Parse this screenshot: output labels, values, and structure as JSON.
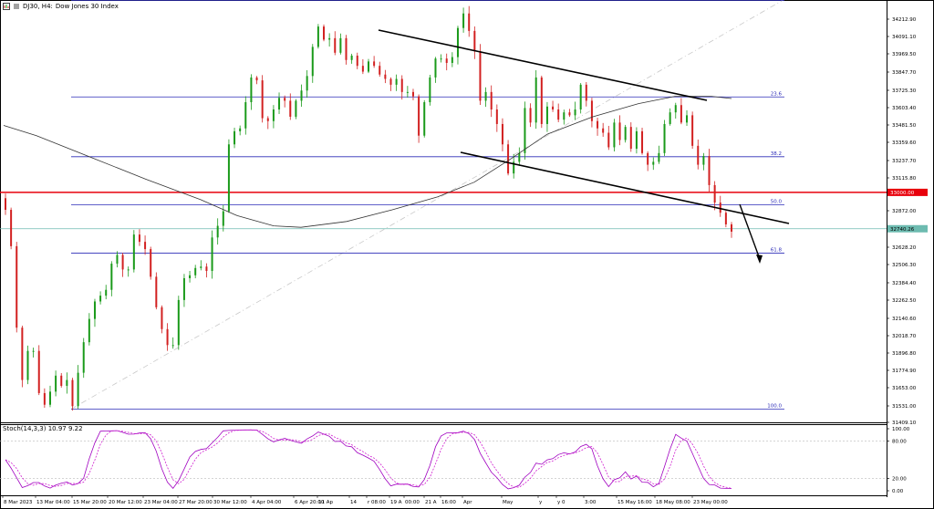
{
  "header": {
    "symbol": "DJ30, H4:",
    "description": "Dow Jones 30 Index"
  },
  "price_axis": {
    "ticks": [
      "34212.90",
      "34091.10",
      "33969.50",
      "33847.70",
      "33725.30",
      "33603.40",
      "33481.50",
      "33359.60",
      "33237.70",
      "33115.80",
      "32872.00",
      "32750.10",
      "32628.20",
      "32506.30",
      "32384.40",
      "32262.50",
      "32140.60",
      "32018.70",
      "31896.80",
      "31774.90",
      "31653.00",
      "31531.00",
      "31409.10"
    ],
    "current_price": "32740.26",
    "level_33000": "33000.00"
  },
  "fibonacci": [
    {
      "label": "0.0",
      "price": 34310
    },
    {
      "label": "23.6",
      "price": 33646
    },
    {
      "label": "38.2",
      "price": 33235
    },
    {
      "label": "50.0",
      "price": 32904
    },
    {
      "label": "61.8",
      "price": 32572
    },
    {
      "label": "100.0",
      "price": 31500
    }
  ],
  "time_axis": [
    "8 Mar 2023",
    "13 Mar 04:00",
    "15 Mar 20:00",
    "20 Mar 12:00",
    "23 Mar 04:00",
    "27 Mar 20:00",
    "30 Mar 12:00",
    "4 Apr 04:00",
    "6 Apr 20:00",
    "11 Ap",
    "14",
    "r 08:00",
    "19 A",
    "00:00",
    "21 A",
    "16:00",
    "Apr",
    "May",
    "y",
    "y 0",
    "3:00",
    "15 May 16:00",
    "18 May 08:00",
    "23 May 00:00"
  ],
  "indicator": {
    "label": "Stoch(14,3,3) 10.97 9.22",
    "levels": [
      "100.00",
      "80.00",
      "20.00",
      "0.00"
    ]
  },
  "colors": {
    "bull": "#1a9a1a",
    "bear": "#d22020",
    "fib": "#2b2bb8",
    "support": "#e8000c",
    "current": "#6dbbb0",
    "stoch_main": "#a000c0",
    "stoch_signal": "#d020d0"
  },
  "chart_data": {
    "type": "candlestick",
    "price_ylim": [
      31409,
      34300
    ],
    "close_series": [
      32870,
      32620,
      32060,
      31700,
      31900,
      31900,
      31610,
      31530,
      31620,
      31730,
      31660,
      31700,
      31520,
      31750,
      31960,
      32120,
      32240,
      32280,
      32320,
      32500,
      32560,
      32460,
      32460,
      32700,
      32650,
      32600,
      32410,
      32200,
      32050,
      31940,
      31940,
      32250,
      32400,
      32420,
      32470,
      32480,
      32450,
      32680,
      32760,
      32860,
      33320,
      33410,
      33430,
      33610,
      33780,
      33760,
      33500,
      33480,
      33560,
      33640,
      33620,
      33510,
      33620,
      33690,
      33790,
      33990,
      34130,
      34040,
      34050,
      33950,
      34050,
      33900,
      33930,
      33860,
      33820,
      33890,
      33860,
      33800,
      33770,
      33730,
      33770,
      33680,
      33680,
      33650,
      33380,
      33610,
      33780,
      33910,
      33910,
      33880,
      33920,
      34120,
      34220,
      34100,
      33960,
      33620,
      33680,
      33560,
      33460,
      33320,
      33120,
      33200,
      33260,
      33570,
      33470,
      33780,
      33460,
      33580,
      33560,
      33490,
      33540,
      33520,
      33560,
      33730,
      33620,
      33480,
      33430,
      33400,
      33300,
      33470,
      33350,
      33440,
      33290,
      33410,
      33260,
      33180,
      33200,
      33260,
      33460,
      33540,
      33590,
      33470,
      33520,
      33310,
      33180,
      33240,
      33040,
      32920,
      32850,
      32770,
      32720
    ]
  }
}
